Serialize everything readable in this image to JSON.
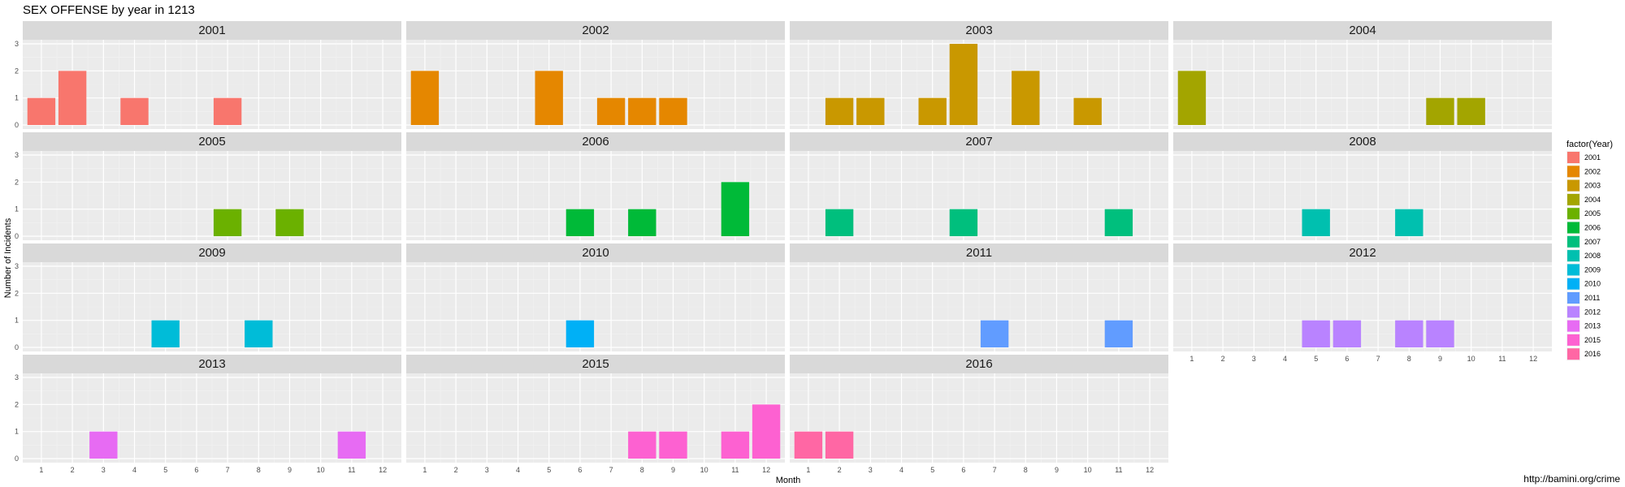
{
  "chart_data": {
    "type": "bar",
    "title": "SEX OFFENSE by year in 1213",
    "xlabel": "Month",
    "ylabel": "Number of Incidents",
    "x_ticks": [
      1,
      2,
      3,
      4,
      5,
      6,
      7,
      8,
      9,
      10,
      11,
      12
    ],
    "y_ticks": [
      0,
      1,
      2,
      3
    ],
    "ylim": [
      0,
      3
    ],
    "grid": true,
    "facet_wrap_columns": 4,
    "legend": {
      "title": "factor(Year)",
      "placement": "right",
      "entries": [
        "2001",
        "2002",
        "2003",
        "2004",
        "2005",
        "2006",
        "2007",
        "2008",
        "2009",
        "2010",
        "2011",
        "2012",
        "2013",
        "2015",
        "2016"
      ]
    },
    "caption": "http://bamini.org/crime",
    "panels": [
      {
        "year": "2001",
        "color": "#F8766D",
        "bars": [
          {
            "month": 1,
            "count": 1
          },
          {
            "month": 2,
            "count": 2
          },
          {
            "month": 4,
            "count": 1
          },
          {
            "month": 7,
            "count": 1
          }
        ]
      },
      {
        "year": "2002",
        "color": "#E58700",
        "bars": [
          {
            "month": 1,
            "count": 2
          },
          {
            "month": 5,
            "count": 2
          },
          {
            "month": 7,
            "count": 1
          },
          {
            "month": 8,
            "count": 1
          },
          {
            "month": 9,
            "count": 1
          }
        ]
      },
      {
        "year": "2003",
        "color": "#C99800",
        "bars": [
          {
            "month": 2,
            "count": 1
          },
          {
            "month": 3,
            "count": 1
          },
          {
            "month": 5,
            "count": 1
          },
          {
            "month": 6,
            "count": 3
          },
          {
            "month": 8,
            "count": 2
          },
          {
            "month": 10,
            "count": 1
          }
        ]
      },
      {
        "year": "2004",
        "color": "#A3A500",
        "bars": [
          {
            "month": 1,
            "count": 2
          },
          {
            "month": 9,
            "count": 1
          },
          {
            "month": 10,
            "count": 1
          }
        ]
      },
      {
        "year": "2005",
        "color": "#6BB100",
        "bars": [
          {
            "month": 7,
            "count": 1
          },
          {
            "month": 9,
            "count": 1
          }
        ]
      },
      {
        "year": "2006",
        "color": "#00BA38",
        "bars": [
          {
            "month": 6,
            "count": 1
          },
          {
            "month": 8,
            "count": 1
          },
          {
            "month": 11,
            "count": 2
          }
        ]
      },
      {
        "year": "2007",
        "color": "#00BF7D",
        "bars": [
          {
            "month": 2,
            "count": 1
          },
          {
            "month": 6,
            "count": 1
          },
          {
            "month": 11,
            "count": 1
          }
        ]
      },
      {
        "year": "2008",
        "color": "#00C0AF",
        "bars": [
          {
            "month": 5,
            "count": 1
          },
          {
            "month": 8,
            "count": 1
          }
        ]
      },
      {
        "year": "2009",
        "color": "#00BCD8",
        "bars": [
          {
            "month": 5,
            "count": 1
          },
          {
            "month": 8,
            "count": 1
          }
        ]
      },
      {
        "year": "2010",
        "color": "#00B0F6",
        "bars": [
          {
            "month": 6,
            "count": 1
          }
        ]
      },
      {
        "year": "2011",
        "color": "#619CFF",
        "bars": [
          {
            "month": 7,
            "count": 1
          },
          {
            "month": 11,
            "count": 1
          }
        ]
      },
      {
        "year": "2012",
        "color": "#B983FF",
        "bars": [
          {
            "month": 5,
            "count": 1
          },
          {
            "month": 6,
            "count": 1
          },
          {
            "month": 8,
            "count": 1
          },
          {
            "month": 9,
            "count": 1
          }
        ]
      },
      {
        "year": "2013",
        "color": "#E76BF3",
        "bars": [
          {
            "month": 3,
            "count": 1
          },
          {
            "month": 11,
            "count": 1
          }
        ]
      },
      {
        "year": "2015",
        "color": "#FD61D1",
        "bars": [
          {
            "month": 8,
            "count": 1
          },
          {
            "month": 9,
            "count": 1
          },
          {
            "month": 11,
            "count": 1
          },
          {
            "month": 12,
            "count": 2
          }
        ]
      },
      {
        "year": "2016",
        "color": "#FF67A4",
        "bars": [
          {
            "month": 1,
            "count": 1
          },
          {
            "month": 2,
            "count": 1
          }
        ]
      }
    ]
  }
}
